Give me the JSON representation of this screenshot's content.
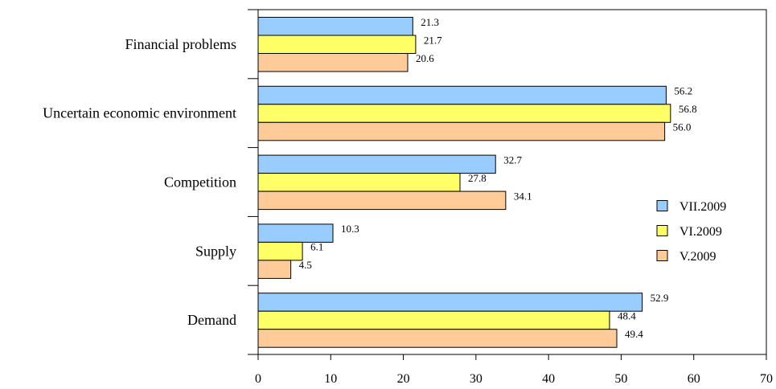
{
  "chart_data": {
    "type": "bar",
    "orientation": "horizontal",
    "categories": [
      "Financial problems",
      "Uncertain economic environment",
      "Competition",
      "Supply",
      "Demand"
    ],
    "series": [
      {
        "name": "VII.2009",
        "color": "#99ccff",
        "values": [
          21.3,
          56.2,
          32.7,
          10.3,
          52.9
        ],
        "labels": [
          "21.3",
          "56.2",
          "32.7",
          "10.3",
          "52.9"
        ]
      },
      {
        "name": "VI.2009",
        "color": "#ffff66",
        "values": [
          21.7,
          56.8,
          27.8,
          6.1,
          48.4
        ],
        "labels": [
          "21.7",
          "56.8",
          "27.8",
          "6.1",
          "48.4"
        ]
      },
      {
        "name": "V.2009",
        "color": "#ffcc99",
        "values": [
          20.6,
          56.0,
          34.1,
          4.5,
          49.4
        ],
        "labels": [
          "20.6",
          "56.0",
          "34.1",
          "4.5",
          "49.4"
        ]
      }
    ],
    "xlim": [
      0,
      70
    ],
    "xticks": [
      "0",
      "10",
      "20",
      "30",
      "40",
      "50",
      "60",
      "70"
    ],
    "title": "",
    "xlabel": "",
    "ylabel": "",
    "grid": false,
    "legend_position": "right"
  }
}
